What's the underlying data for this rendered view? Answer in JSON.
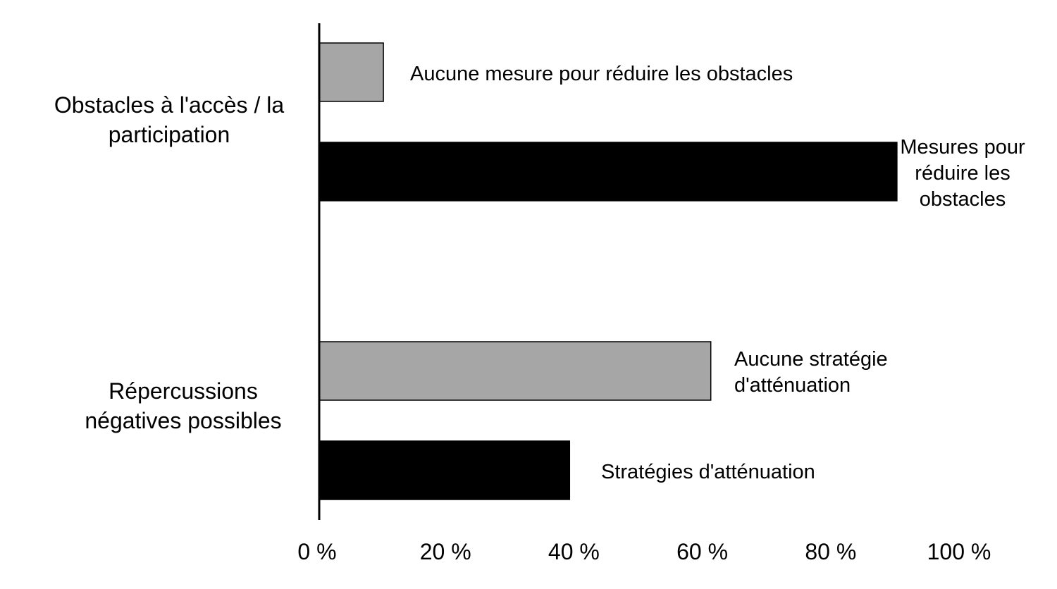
{
  "chart_data": {
    "type": "bar",
    "orientation": "horizontal",
    "title": "",
    "xlabel": "",
    "ylabel": "",
    "xlim": [
      0,
      100
    ],
    "x_ticks": [
      "0 %",
      "20 %",
      "40 %",
      "60 %",
      "80 %",
      "100 %"
    ],
    "grid": false,
    "legend": "none",
    "categories": [
      {
        "label_lines": [
          "Obstacles à l'accès / la",
          "participation"
        ],
        "bars": [
          {
            "label_lines": [
              "Aucune mesure pour réduire les obstacles"
            ],
            "value": 10,
            "color": "#a6a6a6"
          },
          {
            "label_lines": [
              "Mesures pour",
              "réduire les",
              "obstacles"
            ],
            "value": 90,
            "color": "#000000"
          }
        ]
      },
      {
        "label_lines": [
          "Répercussions",
          "négatives possibles"
        ],
        "bars": [
          {
            "label_lines": [
              "Aucune stratégie",
              "d'atténuation"
            ],
            "value": 61,
            "color": "#a6a6a6"
          },
          {
            "label_lines": [
              "Stratégies d'atténuation"
            ],
            "value": 39,
            "color": "#000000"
          }
        ]
      }
    ]
  }
}
